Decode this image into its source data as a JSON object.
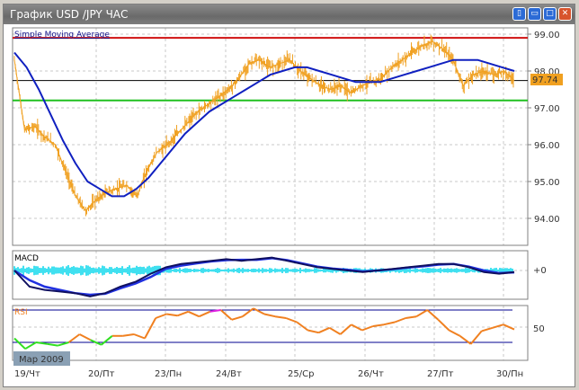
{
  "window": {
    "title": "График USD /JPY  ЧАС",
    "buttons": [
      "tile",
      "minimize",
      "maximize",
      "close"
    ]
  },
  "colors": {
    "price": "#f0a020",
    "sma": "#1020c0",
    "resistance": "#d01010",
    "support": "#20c020",
    "current": "#000000",
    "macd": "#101060",
    "signal": "#2030e0",
    "histogram": "#40e0f0",
    "rsi": "#f08020",
    "rsi_low": "#30e020",
    "rsi_high": "#e020e0",
    "rsi_levels": "#000090"
  },
  "chart_data": [
    {
      "type": "line",
      "title": "Simple Moving Average",
      "y_ticks": [
        "99.00",
        "98.00",
        "97.00",
        "96.00",
        "95.00",
        "94.00"
      ],
      "ylim": [
        93.5,
        99.1
      ],
      "x_tick_labels": [
        "19/Чт",
        "20/Пт",
        "23/Пн",
        "24/Вт",
        "25/Ср",
        "26/Чт",
        "27/Пт",
        "30/Пн"
      ],
      "current_price": "97.74",
      "horizontal_lines": {
        "resistance": 98.9,
        "current": 97.74,
        "support": 97.2
      },
      "price": [
        98.3,
        96.4,
        96.5,
        96.2,
        96.0,
        95.3,
        94.6,
        94.2,
        94.5,
        94.7,
        94.8,
        94.9,
        94.6,
        95.3,
        95.8,
        96.0,
        96.3,
        96.6,
        96.9,
        97.1,
        97.3,
        97.5,
        97.8,
        98.2,
        98.3,
        98.1,
        98.2,
        98.3,
        98.0,
        97.8,
        97.6,
        97.5,
        97.6,
        97.4,
        97.6,
        97.7,
        97.8,
        98.1,
        98.3,
        98.5,
        98.7,
        98.8,
        98.6,
        98.3,
        97.6,
        97.9,
        98.0,
        97.9,
        98.0,
        97.74
      ],
      "sma": [
        98.5,
        98.1,
        97.5,
        96.8,
        96.1,
        95.5,
        95.0,
        94.8,
        94.6,
        94.6,
        94.8,
        95.1,
        95.5,
        95.9,
        96.3,
        96.6,
        96.9,
        97.1,
        97.3,
        97.5,
        97.7,
        97.9,
        98.0,
        98.1,
        98.1,
        98.0,
        97.9,
        97.8,
        97.7,
        97.7,
        97.7,
        97.8,
        97.9,
        98.0,
        98.1,
        98.2,
        98.3,
        98.3,
        98.3,
        98.2,
        98.1,
        98.0
      ],
      "date_label": "Мар 2009"
    },
    {
      "type": "line",
      "title": "MACD",
      "zero_label": "+0",
      "macd": [
        0,
        -0.5,
        -0.6,
        -0.65,
        -0.7,
        -0.8,
        -0.7,
        -0.5,
        -0.35,
        -0.1,
        0.1,
        0.2,
        0.25,
        0.3,
        0.35,
        0.3,
        0.35,
        0.4,
        0.3,
        0.2,
        0.1,
        0.05,
        0,
        -0.05,
        0,
        0.05,
        0.1,
        0.15,
        0.2,
        0.2,
        0.1,
        -0.05,
        -0.1,
        -0.05
      ],
      "signal": [
        0,
        -0.3,
        -0.5,
        -0.6,
        -0.7,
        -0.75,
        -0.72,
        -0.55,
        -0.4,
        -0.2,
        0.05,
        0.15,
        0.22,
        0.28,
        0.32,
        0.33,
        0.33,
        0.38,
        0.32,
        0.22,
        0.12,
        0.06,
        0.02,
        -0.03,
        0,
        0.04,
        0.09,
        0.13,
        0.18,
        0.2,
        0.12,
        0,
        -0.08,
        -0.06
      ]
    },
    {
      "type": "line",
      "title": "RSI",
      "level_label": "50",
      "levels": [
        70,
        30
      ],
      "ylim": [
        15,
        75
      ],
      "rsi": [
        35,
        22,
        30,
        28,
        26,
        30,
        40,
        33,
        27,
        38,
        38,
        40,
        35,
        60,
        65,
        63,
        68,
        62,
        68,
        70,
        58,
        62,
        72,
        65,
        62,
        60,
        55,
        45,
        42,
        48,
        40,
        52,
        45,
        50,
        52,
        55,
        60,
        62,
        70,
        58,
        45,
        38,
        28,
        44,
        48,
        52,
        46
      ],
      "date_label_note": ""
    }
  ]
}
